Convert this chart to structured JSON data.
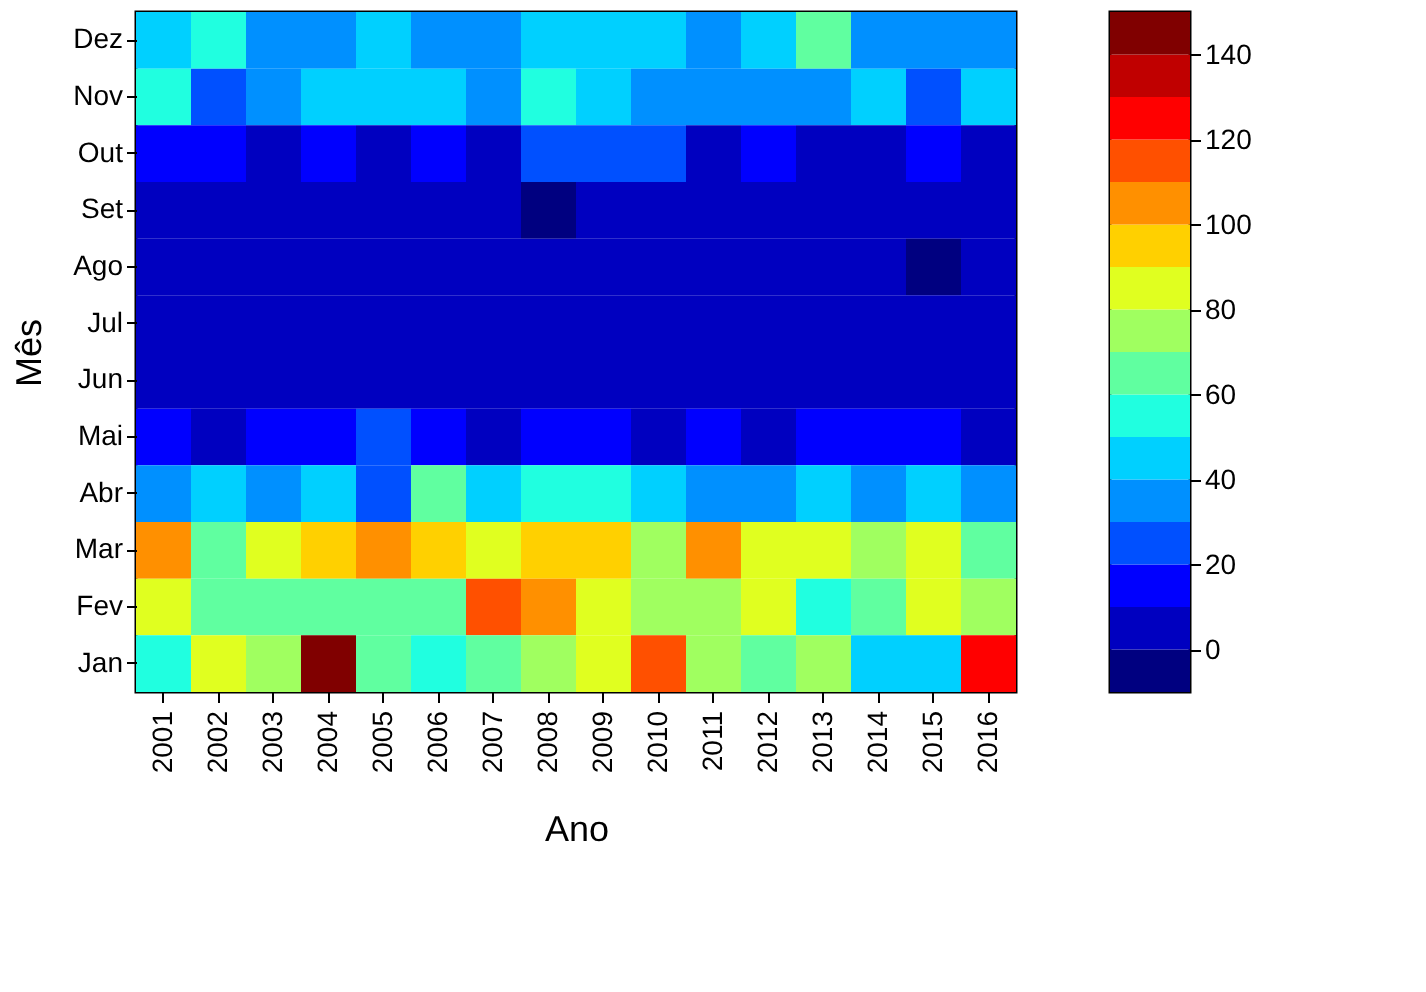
{
  "chart_data": {
    "type": "heatmap",
    "xlabel": "Ano",
    "ylabel": "Mês",
    "categories": [
      "2001",
      "2002",
      "2003",
      "2004",
      "2005",
      "2006",
      "2007",
      "2008",
      "2009",
      "2010",
      "2011",
      "2012",
      "2013",
      "2014",
      "2015",
      "2016"
    ],
    "y_categories": [
      "Dez",
      "Nov",
      "Out",
      "Set",
      "Ago",
      "Jul",
      "Jun",
      "Mai",
      "Abr",
      "Mar",
      "Fev",
      "Jan"
    ],
    "cells": [
      [
        45,
        55,
        35,
        35,
        45,
        35,
        35,
        45,
        45,
        45,
        35,
        45,
        65,
        35,
        35,
        35
      ],
      [
        55,
        25,
        35,
        45,
        45,
        45,
        35,
        55,
        45,
        35,
        35,
        35,
        35,
        45,
        25,
        45
      ],
      [
        15,
        15,
        5,
        15,
        5,
        15,
        5,
        25,
        25,
        25,
        5,
        15,
        5,
        5,
        15,
        5
      ],
      [
        5,
        5,
        5,
        5,
        5,
        5,
        5,
        -5,
        5,
        5,
        5,
        5,
        5,
        5,
        5,
        5
      ],
      [
        5,
        5,
        5,
        5,
        5,
        5,
        5,
        5,
        5,
        5,
        5,
        5,
        5,
        5,
        -5,
        5
      ],
      [
        5,
        5,
        5,
        5,
        5,
        5,
        5,
        5,
        5,
        5,
        5,
        5,
        5,
        5,
        5,
        5
      ],
      [
        5,
        5,
        5,
        5,
        5,
        5,
        5,
        5,
        5,
        5,
        5,
        5,
        5,
        5,
        5,
        5
      ],
      [
        15,
        5,
        15,
        15,
        25,
        15,
        5,
        15,
        15,
        5,
        15,
        5,
        15,
        15,
        15,
        5
      ],
      [
        35,
        45,
        35,
        45,
        25,
        65,
        45,
        55,
        55,
        45,
        35,
        35,
        45,
        35,
        45,
        35
      ],
      [
        105,
        65,
        85,
        95,
        105,
        95,
        85,
        95,
        95,
        75,
        105,
        85,
        85,
        75,
        85,
        65
      ],
      [
        85,
        65,
        65,
        65,
        65,
        65,
        115,
        105,
        85,
        75,
        75,
        85,
        55,
        65,
        85,
        75
      ],
      [
        55,
        85,
        75,
        145,
        65,
        55,
        65,
        75,
        85,
        115,
        75,
        65,
        75,
        45,
        45,
        125
      ]
    ],
    "clim": [
      -10,
      150
    ],
    "cticks": [
      0,
      20,
      40,
      60,
      80,
      100,
      120,
      140
    ]
  }
}
